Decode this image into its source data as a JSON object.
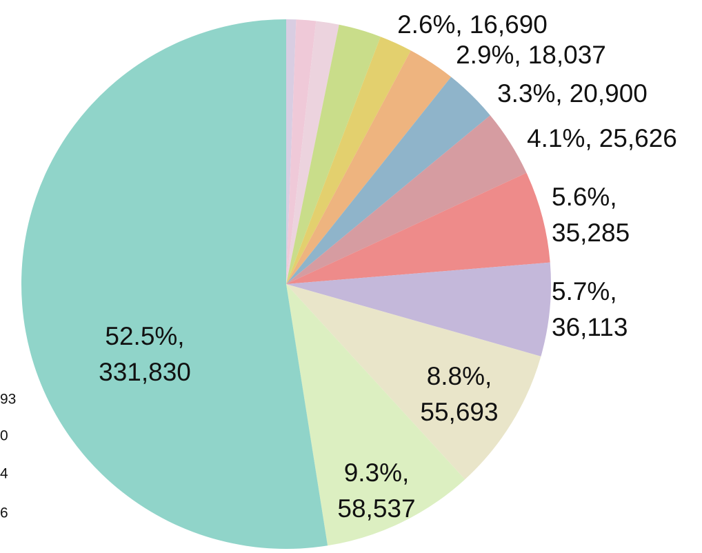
{
  "chart_data": {
    "type": "pie",
    "categories": [
      null,
      null,
      null,
      null,
      null,
      null,
      null,
      null,
      null,
      null,
      null,
      null,
      null
    ],
    "values": [
      0.6,
      1.2,
      1.4,
      2.6,
      2.0,
      2.9,
      3.3,
      4.1,
      5.6,
      5.7,
      8.8,
      9.3,
      52.5
    ],
    "value_labels": [
      null,
      null,
      null,
      "2.6%,",
      null,
      "2.9%,",
      "3.3%,",
      "4.1%,",
      "5.6%,",
      "5.7%,",
      "8.8%,",
      "9.3%,",
      "52.5%,"
    ],
    "count_labels": [
      null,
      null,
      null,
      "16,690",
      null,
      "18,037",
      "20,900",
      "25,626",
      "35,285",
      "36,113",
      "55,693",
      "58,537",
      "331,830"
    ],
    "colors": [
      "#d9cde2",
      "#efc9d8",
      "#ecd3de",
      "#c9dd8a",
      "#e3d06e",
      "#eeb47f",
      "#8fb4ca",
      "#d69ca1",
      "#ee8b8a",
      "#c4b8da",
      "#e9e5c9",
      "#dcefc1",
      "#90d4c9"
    ],
    "annotations": [
      "93",
      "0",
      "4",
      "6"
    ]
  }
}
